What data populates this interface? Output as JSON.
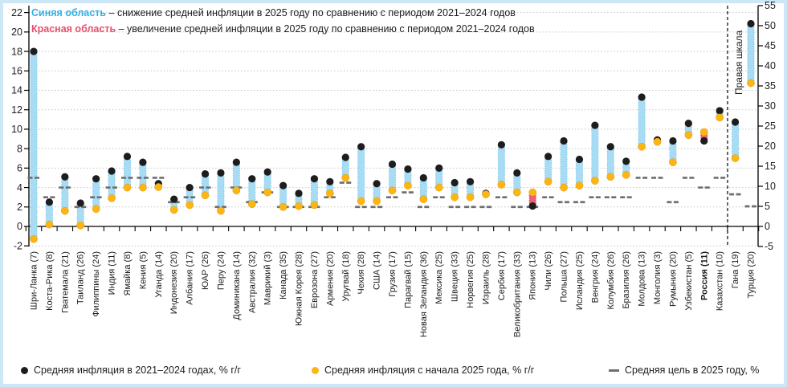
{
  "annotations": {
    "blue_label": "Синяя область",
    "blue_text": "– снижение средней инфляции в 2025 году по сравнению с периодом 2021–2024 годов",
    "red_label": "Красная область",
    "red_text": "– увеличение средней инфляции в 2025 году по сравнению с периодом 2021–2024 годов",
    "right_scale_note": "Правая шкала"
  },
  "legend": [
    {
      "marker": "black-dot",
      "label": "Средняя инфляция в 2021–2024 годах, % г/г"
    },
    {
      "marker": "yellow-dot",
      "label": "Средняя инфляция с начала 2025 года, % г/г"
    },
    {
      "marker": "gray-dash",
      "label": "Средняя цель в 2025 году, %"
    }
  ],
  "colors": {
    "page_frame": "#cde7f6",
    "plot_bg": "#ffffff",
    "blue_bar": "#a8dcf4",
    "blue_bar_edge": "#7ec8ec",
    "red_bar": "#ec6075",
    "red_bar_edge": "#d63d58",
    "black_dot": "#1d1d1d",
    "yellow_dot": "#fcb515",
    "target_dash": "#6f6f6f",
    "grid": "#c6c6c6",
    "axis": "#000000",
    "blue_label": "#2eb0e6",
    "red_label": "#e8506b"
  },
  "chart_data": {
    "type": "range-dot-column",
    "title": "",
    "left_axis": {
      "min": -2,
      "max": 22,
      "step": 2
    },
    "right_axis": {
      "min": -5,
      "max": 55,
      "step": 5
    },
    "grid": true,
    "series": [
      {
        "name": "Средняя инфляция в 2021–2024 годах, % г/г",
        "marker": "black-dot"
      },
      {
        "name": "Средняя инфляция с начала 2025 года, % г/г",
        "marker": "yellow-dot"
      },
      {
        "name": "Средняя цель в 2025 году, %",
        "marker": "gray-dash"
      }
    ],
    "blue_area_meaning": "снижение средней инфляции в 2025 vs 2021–2024",
    "red_area_meaning": "увеличение средней инфляции в 2025 vs 2021–2024",
    "countries": [
      {
        "label": "Шри-Ланка (7)",
        "avg_2021_2024": 18.0,
        "avg_2025": -1.3,
        "target": 5,
        "scale": "left"
      },
      {
        "label": "Коста-Рика (8)",
        "avg_2021_2024": 2.5,
        "avg_2025": 0.2,
        "target": 3,
        "scale": "left"
      },
      {
        "label": "Гватемала (21)",
        "avg_2021_2024": 5.1,
        "avg_2025": 1.6,
        "target": 4,
        "scale": "left"
      },
      {
        "label": "Таиланд (26)",
        "avg_2021_2024": 2.4,
        "avg_2025": 0.1,
        "target": 2,
        "scale": "left"
      },
      {
        "label": "Филиппины (24)",
        "avg_2021_2024": 4.9,
        "avg_2025": 1.8,
        "target": 3,
        "scale": "left"
      },
      {
        "label": "Индия (11)",
        "avg_2021_2024": 5.7,
        "avg_2025": 2.9,
        "target": 4,
        "scale": "left"
      },
      {
        "label": "Ямайка (8)",
        "avg_2021_2024": 7.2,
        "avg_2025": 4.0,
        "target": 5,
        "scale": "left"
      },
      {
        "label": "Кения (5)",
        "avg_2021_2024": 6.6,
        "avg_2025": 4.0,
        "target": 5,
        "scale": "left"
      },
      {
        "label": "Уганда (14)",
        "avg_2021_2024": 4.4,
        "avg_2025": 4.05,
        "target": 5,
        "scale": "left"
      },
      {
        "label": "Индонезия (20)",
        "avg_2021_2024": 2.8,
        "avg_2025": 1.7,
        "target": 2.5,
        "scale": "left"
      },
      {
        "label": "Албания (17)",
        "avg_2021_2024": 4.0,
        "avg_2025": 2.2,
        "target": 3,
        "scale": "left"
      },
      {
        "label": "ЮАР (26)",
        "avg_2021_2024": 5.4,
        "avg_2025": 3.2,
        "target": 4,
        "scale": "left"
      },
      {
        "label": "Перу (24)",
        "avg_2021_2024": 5.5,
        "avg_2025": 1.6,
        "target": 2,
        "scale": "left"
      },
      {
        "label": "Доминикана (14)",
        "avg_2021_2024": 6.6,
        "avg_2025": 3.7,
        "target": 4,
        "scale": "left"
      },
      {
        "label": "Австралия (32)",
        "avg_2021_2024": 4.9,
        "avg_2025": 2.3,
        "target": 2.5,
        "scale": "left"
      },
      {
        "label": "Маврикий (3)",
        "avg_2021_2024": 5.6,
        "avg_2025": 3.5,
        "target": 3.5,
        "scale": "left"
      },
      {
        "label": "Канада (35)",
        "avg_2021_2024": 4.2,
        "avg_2025": 2.0,
        "target": 2,
        "scale": "left"
      },
      {
        "label": "Южная Корея (28)",
        "avg_2021_2024": 3.4,
        "avg_2025": 2.1,
        "target": 2,
        "scale": "left"
      },
      {
        "label": "Еврозона (27)",
        "avg_2021_2024": 4.9,
        "avg_2025": 2.2,
        "target": 2,
        "scale": "left"
      },
      {
        "label": "Армения (20)",
        "avg_2021_2024": 4.6,
        "avg_2025": 3.4,
        "target": 3,
        "scale": "left"
      },
      {
        "label": "Уругвай (18)",
        "avg_2021_2024": 7.1,
        "avg_2025": 5.0,
        "target": 4.5,
        "scale": "left"
      },
      {
        "label": "Чехия (28)",
        "avg_2021_2024": 8.2,
        "avg_2025": 2.6,
        "target": 2,
        "scale": "left"
      },
      {
        "label": "США (14)",
        "avg_2021_2024": 4.4,
        "avg_2025": 2.6,
        "target": 2,
        "scale": "left"
      },
      {
        "label": "Грузия (17)",
        "avg_2021_2024": 6.4,
        "avg_2025": 3.7,
        "target": 3,
        "scale": "left"
      },
      {
        "label": "Парагвай (15)",
        "avg_2021_2024": 5.9,
        "avg_2025": 4.2,
        "target": 3.5,
        "scale": "left"
      },
      {
        "label": "Новая Зеландия (36)",
        "avg_2021_2024": 5.0,
        "avg_2025": 2.8,
        "target": 2,
        "scale": "left"
      },
      {
        "label": "Мексика (25)",
        "avg_2021_2024": 6.0,
        "avg_2025": 4.0,
        "target": 3,
        "scale": "left"
      },
      {
        "label": "Швеция (33)",
        "avg_2021_2024": 4.5,
        "avg_2025": 3.0,
        "target": 2,
        "scale": "left"
      },
      {
        "label": "Норвегия (25)",
        "avg_2021_2024": 4.6,
        "avg_2025": 3.0,
        "target": 2,
        "scale": "left"
      },
      {
        "label": "Израиль (28)",
        "avg_2021_2024": 3.4,
        "avg_2025": 3.3,
        "target": 2,
        "scale": "left"
      },
      {
        "label": "Сербия (17)",
        "avg_2021_2024": 8.4,
        "avg_2025": 4.3,
        "target": 3,
        "scale": "left"
      },
      {
        "label": "Великобритания (33)",
        "avg_2021_2024": 5.5,
        "avg_2025": 3.5,
        "target": 2,
        "scale": "left"
      },
      {
        "label": "Япония (13)",
        "avg_2021_2024": 2.1,
        "avg_2025": 3.5,
        "target": 2,
        "scale": "left"
      },
      {
        "label": "Чили (26)",
        "avg_2021_2024": 7.2,
        "avg_2025": 4.6,
        "target": 3,
        "scale": "left"
      },
      {
        "label": "Польша (27)",
        "avg_2021_2024": 8.8,
        "avg_2025": 4.0,
        "target": 2.5,
        "scale": "left"
      },
      {
        "label": "Исландия (25)",
        "avg_2021_2024": 6.9,
        "avg_2025": 4.2,
        "target": 2.5,
        "scale": "left"
      },
      {
        "label": "Венгрия (24)",
        "avg_2021_2024": 10.4,
        "avg_2025": 4.7,
        "target": 3,
        "scale": "left"
      },
      {
        "label": "Колумбия (26)",
        "avg_2021_2024": 8.2,
        "avg_2025": 5.1,
        "target": 3,
        "scale": "left"
      },
      {
        "label": "Бразилия (26)",
        "avg_2021_2024": 6.7,
        "avg_2025": 5.3,
        "target": 3,
        "scale": "left"
      },
      {
        "label": "Молдова (13)",
        "avg_2021_2024": 13.3,
        "avg_2025": 8.2,
        "target": 5,
        "scale": "left"
      },
      {
        "label": "Монголия (3)",
        "avg_2021_2024": 8.9,
        "avg_2025": 8.7,
        "target": 5,
        "scale": "left"
      },
      {
        "label": "Румыния (20)",
        "avg_2021_2024": 8.8,
        "avg_2025": 6.6,
        "target": 2.5,
        "scale": "left"
      },
      {
        "label": "Узбекистан (5)",
        "avg_2021_2024": 10.6,
        "avg_2025": 9.4,
        "target": 5,
        "scale": "left"
      },
      {
        "label": "Россия (11)",
        "avg_2021_2024": 8.8,
        "avg_2025": 9.7,
        "target": 4,
        "scale": "left",
        "bold": true
      },
      {
        "label": "Казахстан (10)",
        "avg_2021_2024": 11.9,
        "avg_2025": 11.2,
        "target": 5,
        "scale": "left"
      },
      {
        "label": "Гана (19)",
        "avg_2021_2024": 26.0,
        "avg_2025": 17.0,
        "target": 8,
        "scale": "right"
      },
      {
        "label": "Турция (20)",
        "avg_2021_2024": 50.5,
        "avg_2025": 35.7,
        "target": 5,
        "scale": "right"
      }
    ]
  }
}
